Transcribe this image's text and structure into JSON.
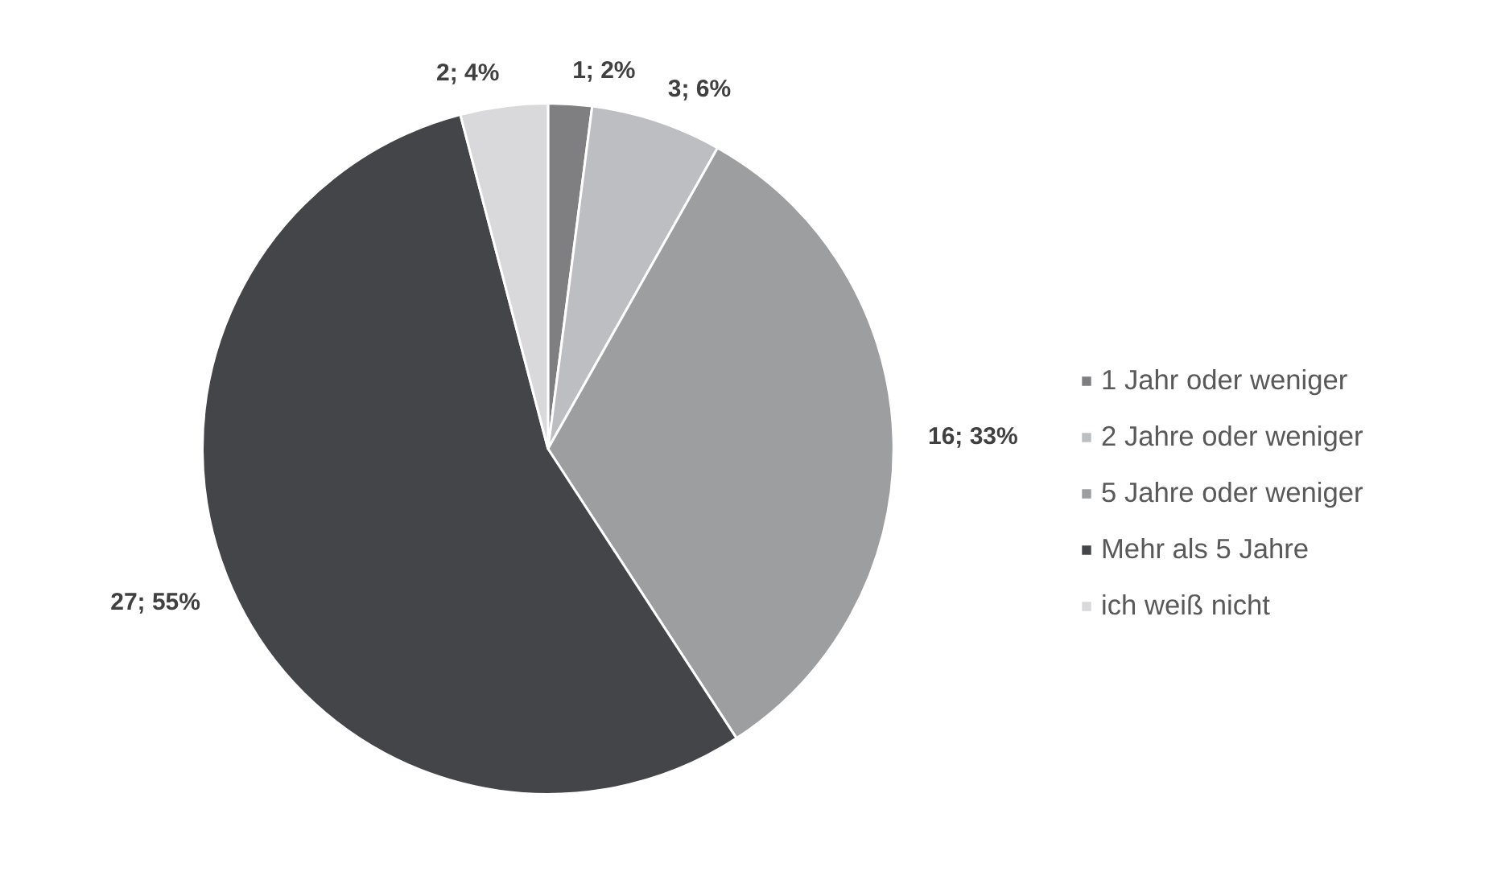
{
  "chart_data": {
    "type": "pie",
    "categories": [
      "1 Jahr oder weniger",
      "2 Jahre oder weniger",
      "5 Jahre oder weniger",
      "Mehr als 5 Jahre",
      "ich weiß nicht"
    ],
    "values": [
      1,
      3,
      16,
      27,
      2
    ],
    "colors": [
      "#7f7f81",
      "#bdbec1",
      "#9d9ea0",
      "#444548",
      "#d9d9db"
    ],
    "value_labels": [
      "1; 2%",
      "3; 6%",
      "16; 33%",
      "27; 55%",
      "2; 4%"
    ],
    "legend": "right"
  }
}
